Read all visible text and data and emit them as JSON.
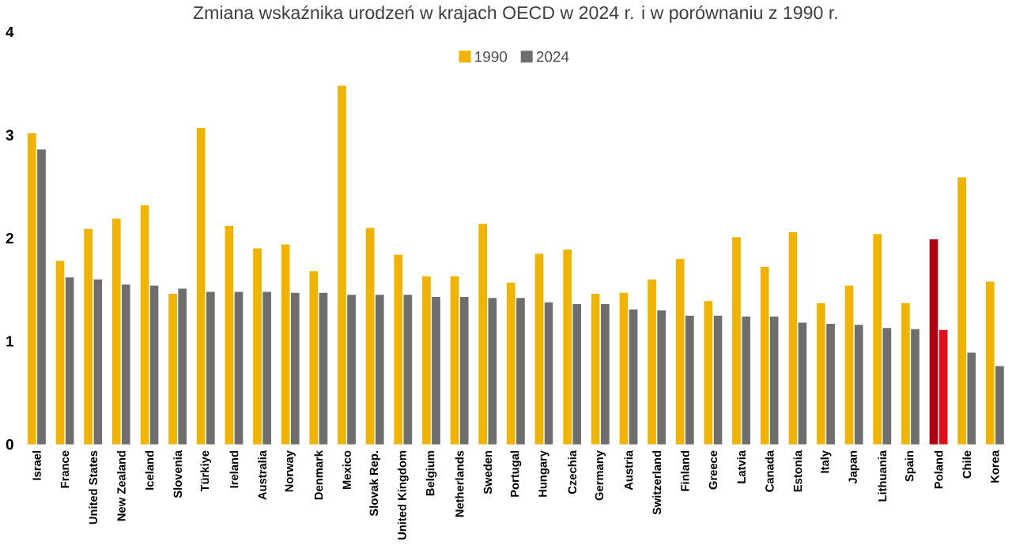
{
  "chart_data": {
    "type": "bar",
    "title": "Zmiana wskaźnika urodzeń w krajach OECD w 2024 r. i w porównaniu z 1990 r.",
    "categories": [
      "Israel",
      "France",
      "United States",
      "New Zealand",
      "Iceland",
      "Slovenia",
      "Türkiye",
      "Ireland",
      "Australia",
      "Norway",
      "Denmark",
      "Mexico",
      "Slovak Rep.",
      "United Kingdom",
      "Belgium",
      "Netherlands",
      "Sweden",
      "Portugal",
      "Hungary",
      "Czechia",
      "Germany",
      "Austria",
      "Switzerland",
      "Finland",
      "Greece",
      "Latvia",
      "Canada",
      "Estonia",
      "Italy",
      "Japan",
      "Lithuania",
      "Spain",
      "Poland",
      "Chile",
      "Korea"
    ],
    "series": [
      {
        "name": "1990",
        "color": "#f0b400",
        "colors": [
          "#f0b400",
          "#f0b400",
          "#f0b400",
          "#f0b400",
          "#f0b400",
          "#f0b400",
          "#f0b400",
          "#f0b400",
          "#f0b400",
          "#f0b400",
          "#f0b400",
          "#f0b400",
          "#f0b400",
          "#f0b400",
          "#f0b400",
          "#f0b400",
          "#f0b400",
          "#f0b400",
          "#f0b400",
          "#f0b400",
          "#f0b400",
          "#f0b400",
          "#f0b400",
          "#f0b400",
          "#f0b400",
          "#f0b400",
          "#f0b400",
          "#f0b400",
          "#f0b400",
          "#f0b400",
          "#f0b400",
          "#f0b400",
          "#b00010",
          "#f0b400",
          "#f0b400"
        ],
        "values": [
          3.02,
          1.78,
          2.09,
          2.19,
          2.32,
          1.46,
          3.07,
          2.12,
          1.9,
          1.94,
          1.68,
          3.48,
          2.1,
          1.84,
          1.63,
          1.63,
          2.14,
          1.57,
          1.85,
          1.89,
          1.46,
          1.47,
          1.6,
          1.8,
          1.39,
          2.01,
          1.72,
          2.06,
          1.37,
          1.54,
          2.04,
          1.37,
          1.99,
          2.59,
          1.58
        ]
      },
      {
        "name": "2024",
        "color": "#6e6e6e",
        "colors": [
          "#6e6e6e",
          "#6e6e6e",
          "#6e6e6e",
          "#6e6e6e",
          "#6e6e6e",
          "#6e6e6e",
          "#6e6e6e",
          "#6e6e6e",
          "#6e6e6e",
          "#6e6e6e",
          "#6e6e6e",
          "#6e6e6e",
          "#6e6e6e",
          "#6e6e6e",
          "#6e6e6e",
          "#6e6e6e",
          "#6e6e6e",
          "#6e6e6e",
          "#6e6e6e",
          "#6e6e6e",
          "#6e6e6e",
          "#6e6e6e",
          "#6e6e6e",
          "#6e6e6e",
          "#6e6e6e",
          "#6e6e6e",
          "#6e6e6e",
          "#6e6e6e",
          "#6e6e6e",
          "#6e6e6e",
          "#6e6e6e",
          "#6e6e6e",
          "#e0101a",
          "#6e6e6e",
          "#6e6e6e"
        ],
        "values": [
          2.86,
          1.62,
          1.6,
          1.55,
          1.54,
          1.51,
          1.48,
          1.48,
          1.48,
          1.47,
          1.47,
          1.45,
          1.45,
          1.45,
          1.43,
          1.43,
          1.42,
          1.42,
          1.38,
          1.36,
          1.36,
          1.31,
          1.3,
          1.25,
          1.25,
          1.24,
          1.24,
          1.18,
          1.17,
          1.16,
          1.13,
          1.12,
          1.11,
          0.89,
          0.76
        ]
      }
    ],
    "ylim": [
      0,
      4
    ],
    "yticks": [
      0,
      1,
      2,
      3,
      4
    ],
    "grid": false,
    "legend": "top"
  }
}
